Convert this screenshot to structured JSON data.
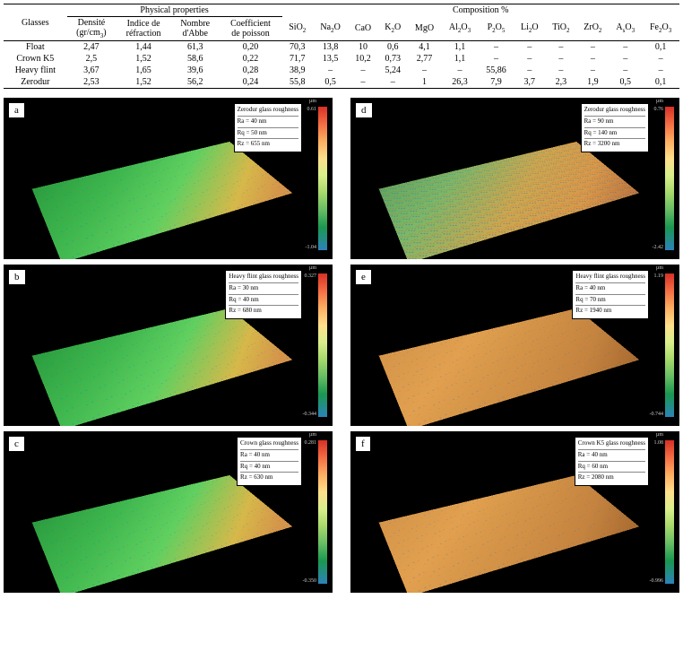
{
  "table": {
    "header_main": [
      "Glasses",
      "Physical properties",
      "Composition %"
    ],
    "header_sub": [
      "Densité (gr/cm³)",
      "Indice de réfraction",
      "Nombre d'Abbe",
      "Coefficient de poisson",
      "SiO₂",
      "Na₂O",
      "CaO",
      "K₂O",
      "MgO",
      "Al₂O₃",
      "P₂O₅",
      "Li₂O",
      "TiO₂",
      "ZrO₂",
      "AsO₃",
      "Fe₂O₃"
    ],
    "rows": [
      {
        "name": "Float",
        "vals": [
          "2,47",
          "1,44",
          "61,3",
          "0,20",
          "70,3",
          "13,8",
          "10",
          "0,6",
          "4,1",
          "1,1",
          "–",
          "–",
          "–",
          "–",
          "–",
          "0,1"
        ]
      },
      {
        "name": "Crown K5",
        "vals": [
          "2,5",
          "1,52",
          "58,6",
          "0,22",
          "71,7",
          "13,5",
          "10,2",
          "0,73",
          "2,77",
          "1,1",
          "–",
          "–",
          "–",
          "–",
          "–",
          "–"
        ]
      },
      {
        "name": "Heavy flint",
        "vals": [
          "3,67",
          "1,65",
          "39,6",
          "0,28",
          "38,9",
          "–",
          "–",
          "5,24",
          "–",
          "–",
          "55,86",
          "–",
          "–",
          "–",
          "–",
          "–"
        ]
      },
      {
        "name": "Zerodur",
        "vals": [
          "2,53",
          "1,52",
          "56,2",
          "0,24",
          "55,8",
          "0,5",
          "–",
          "–",
          "1",
          "26,3",
          "7,9",
          "3,7",
          "2,3",
          "1,9",
          "0,5",
          "0,1"
        ]
      }
    ]
  },
  "panels": [
    {
      "id": "a",
      "title": "Zerodur glass roughness",
      "Ra": "Ra = 40 nm",
      "Rq": "Rq = 50 nm",
      "Rz": "Rz = 655 nm",
      "cb_unit": "µm",
      "cb_top": "0.61",
      "cb_bot": "-1.04",
      "surf": "surf-green",
      "noise": "noise"
    },
    {
      "id": "d",
      "title": "Zerodur glass roughness",
      "Ra": "Ra = 90 nm",
      "Rq": "Rq = 140 nm",
      "Rz": "Rz = 3200 nm",
      "cb_unit": "µm",
      "cb_top": "0.76",
      "cb_bot": "-2.42",
      "surf": "surf-mix",
      "noise": "noise-heavy"
    },
    {
      "id": "b",
      "title": "Heavy flint glass roughness",
      "Ra": "Ra = 30 nm",
      "Rq": "Rq = 40 nm",
      "Rz": "Rz = 680 nm",
      "cb_unit": "µm",
      "cb_top": "0.327",
      "cb_bot": "-0.344",
      "surf": "surf-green",
      "noise": "noise"
    },
    {
      "id": "e",
      "title": "Heavy flint glass roughness",
      "Ra": "Ra = 40 nm",
      "Rq": "Rq = 70 nm",
      "Rz": "Rz = 1940 nm",
      "cb_unit": "µm",
      "cb_top": "1.19",
      "cb_bot": "-0.744",
      "surf": "surf-orange",
      "noise": "noise"
    },
    {
      "id": "c",
      "title": "Crown glass roughness",
      "Ra": "Ra = 40 nm",
      "Rq": "Rq = 40 nm",
      "Rz": "Rz = 630 nm",
      "cb_unit": "µm",
      "cb_top": "0.281",
      "cb_bot": "-0.350",
      "surf": "surf-green",
      "noise": "noise"
    },
    {
      "id": "f",
      "title": "Crown K5 glass roughness",
      "Ra": "Ra = 40 nm",
      "Rq": "Rq = 60 nm",
      "Rz": "Rz = 2080 nm",
      "cb_unit": "µm",
      "cb_top": "1.08",
      "cb_bot": "-0.996",
      "surf": "surf-orange",
      "noise": "noise"
    }
  ]
}
